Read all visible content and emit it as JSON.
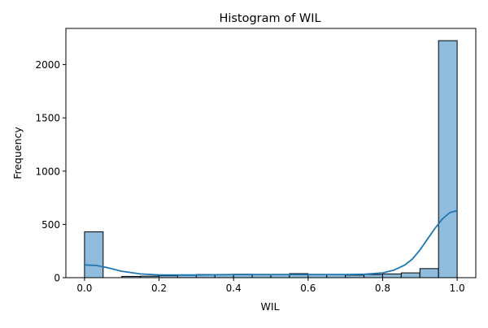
{
  "chart_data": {
    "type": "bar",
    "title": "Histogram of WIL",
    "xlabel": "WIL",
    "ylabel": "Frequency",
    "xlim": [
      -0.05,
      1.05
    ],
    "ylim": [
      0,
      2340
    ],
    "xticks": [
      "0.0",
      "0.2",
      "0.4",
      "0.6",
      "0.8",
      "1.0"
    ],
    "xtick_values": [
      0.0,
      0.2,
      0.4,
      0.6,
      0.8,
      1.0
    ],
    "yticks": [
      "0",
      "500",
      "1000",
      "1500",
      "2000"
    ],
    "ytick_values": [
      0,
      500,
      1000,
      1500,
      2000
    ],
    "bin_edges": [
      0.0,
      0.05,
      0.1,
      0.15,
      0.2,
      0.25,
      0.3,
      0.35,
      0.4,
      0.45,
      0.5,
      0.55,
      0.6,
      0.65,
      0.7,
      0.75,
      0.8,
      0.85,
      0.9,
      0.95,
      1.0
    ],
    "values": [
      430,
      0,
      12,
      14,
      18,
      22,
      30,
      28,
      32,
      30,
      28,
      38,
      30,
      30,
      24,
      30,
      35,
      45,
      85,
      2225
    ],
    "kde": {
      "x": [
        0.0,
        0.03,
        0.06,
        0.1,
        0.15,
        0.2,
        0.3,
        0.4,
        0.5,
        0.6,
        0.7,
        0.75,
        0.8,
        0.83,
        0.86,
        0.88,
        0.9,
        0.92,
        0.94,
        0.96,
        0.98,
        1.0
      ],
      "y": [
        120,
        115,
        95,
        60,
        35,
        25,
        25,
        30,
        30,
        30,
        30,
        32,
        45,
        70,
        120,
        175,
        260,
        360,
        460,
        550,
        610,
        630
      ]
    },
    "bar_color": "#8fbcdd",
    "line_color": "#1f77b4",
    "grid": false,
    "legend": "none"
  }
}
